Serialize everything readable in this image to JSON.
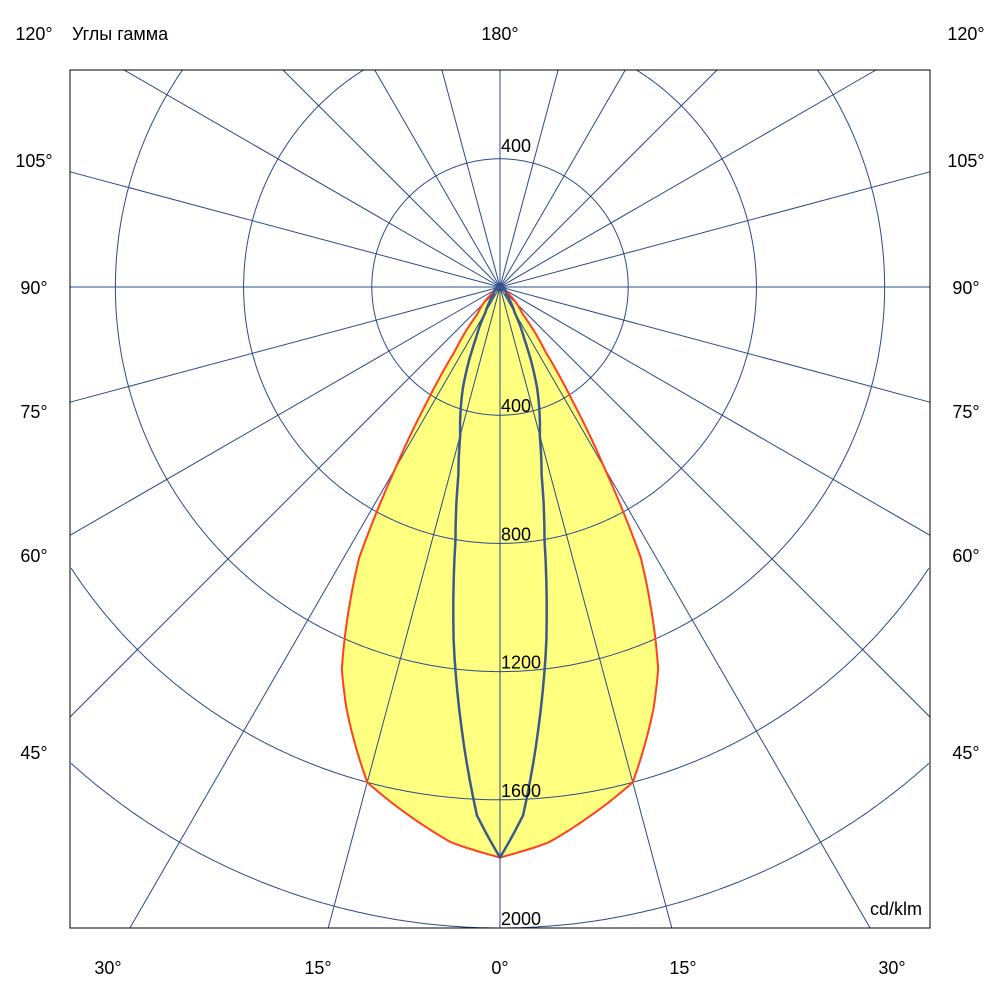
{
  "chart_data": {
    "type": "polar",
    "title": "Углы гамма",
    "top_label": "180°",
    "unit_label": "cd/klm",
    "radial_ticks": [
      400,
      800,
      1200,
      1600,
      2000
    ],
    "radial_tick_labels": [
      "400",
      "800",
      "1200",
      "1600",
      "2000"
    ],
    "top_radial_label": "400",
    "side_angle_labels": [
      "120°",
      "105°",
      "90°",
      "75°",
      "60°",
      "45°"
    ],
    "bottom_angle_labels": [
      "30°",
      "15°",
      "0°",
      "15°",
      "30°"
    ],
    "angle_grid_step_deg": 15,
    "rmax": 2000,
    "grid": true,
    "series": [
      {
        "fill": "#ffff80",
        "stroke": "#ff4020",
        "angles": [
          0,
          5,
          10,
          15,
          20,
          22.5,
          25,
          27.5,
          30,
          32.5,
          35,
          40,
          50,
          60,
          90
        ],
        "values": [
          1780,
          1740,
          1670,
          1600,
          1400,
          1290,
          1120,
          950,
          650,
          420,
          250,
          110,
          40,
          15,
          0
        ]
      },
      {
        "fill": "none",
        "stroke": "#3a5a8c",
        "angles": [
          0,
          2.5,
          5,
          7.5,
          10,
          12.5,
          15,
          20,
          25,
          30,
          40,
          90
        ],
        "values": [
          1780,
          1650,
          1380,
          1110,
          800,
          600,
          480,
          340,
          180,
          90,
          30,
          0
        ]
      }
    ],
    "colors": {
      "grid": "#2a4a8a",
      "frame": "#000000"
    }
  }
}
